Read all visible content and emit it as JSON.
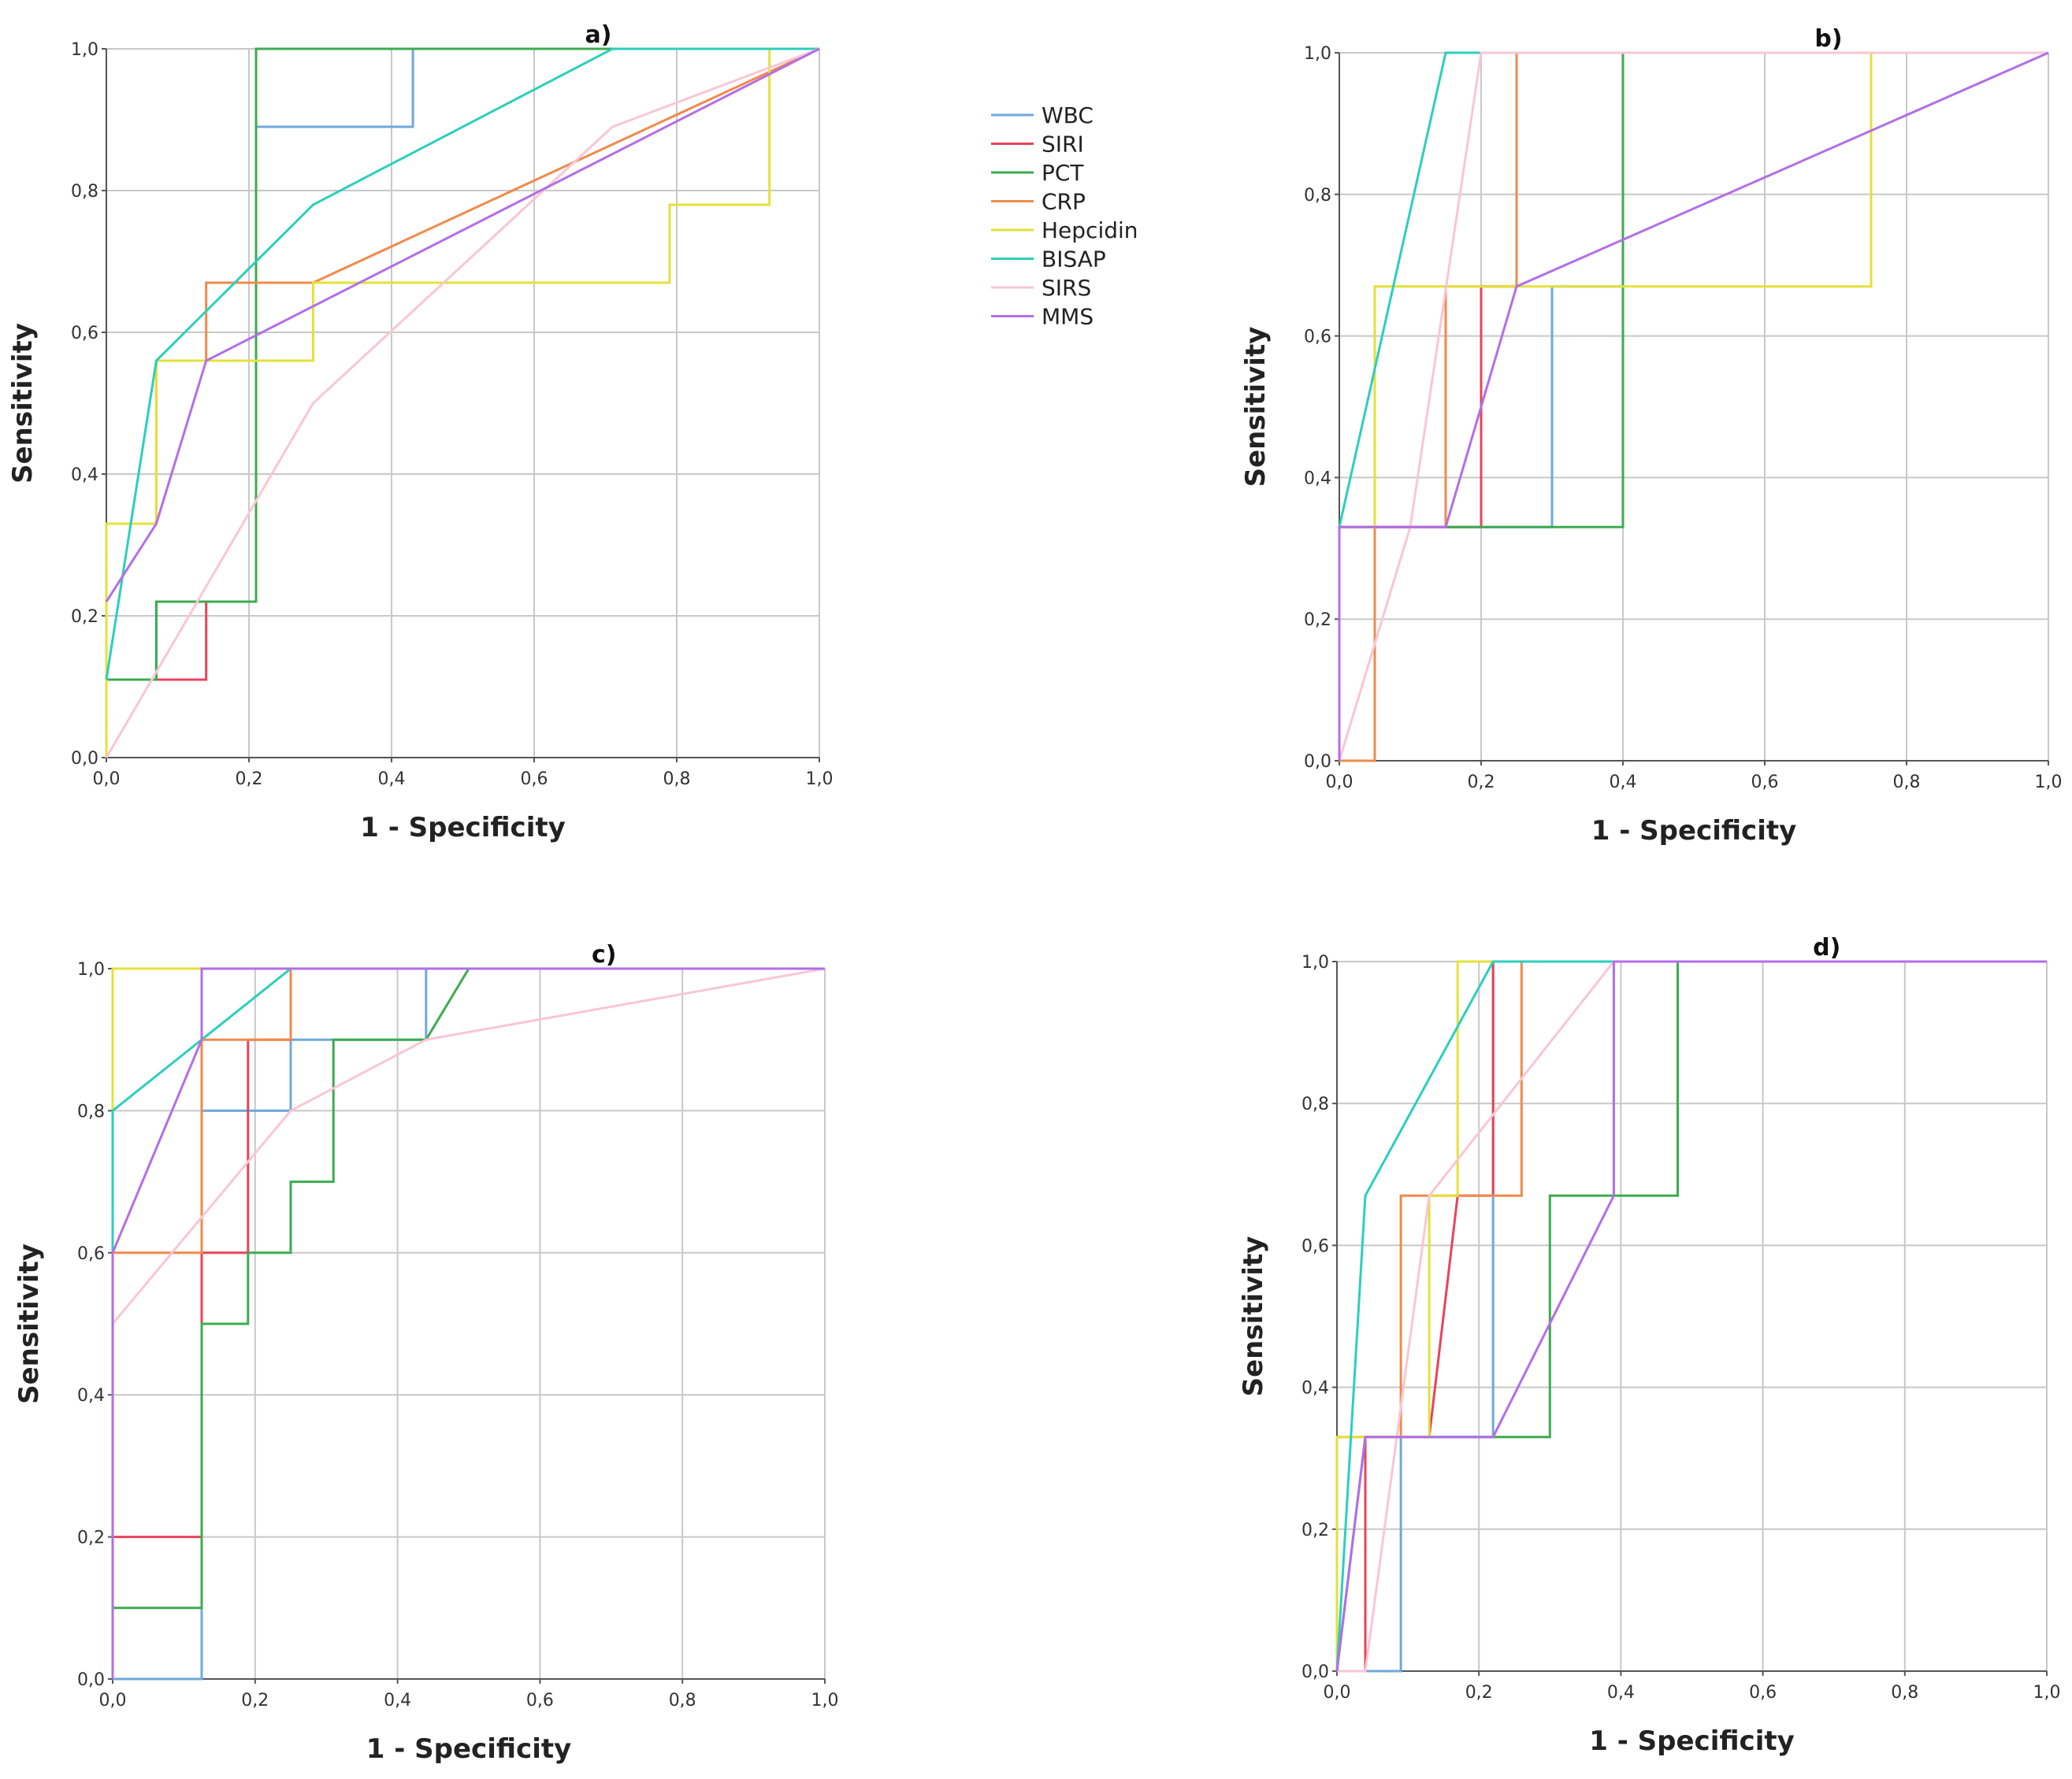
{
  "series_colors": {
    "WBC": "#6fa8dc",
    "SIRI": "#e8435a",
    "PCT": "#3cab50",
    "CRP": "#f08a4b",
    "Hepcidin": "#e3e13a",
    "BISAP": "#2ccfbc",
    "SIRS": "#f9c6d4",
    "MMS": "#b36ee8"
  },
  "legend": {
    "entries": [
      "WBC",
      "SIRI",
      "PCT",
      "CRP",
      "Hepcidin",
      "BISAP",
      "SIRS",
      "MMS"
    ]
  },
  "chart_data": [
    {
      "type": "line",
      "title": "a)",
      "xlabel": "1 - Specificity",
      "ylabel": "Sensitivity",
      "xlim": [
        0,
        1
      ],
      "ylim": [
        0,
        1
      ],
      "grid": true,
      "x_tick_labels": [
        "0,0",
        "0,2",
        "0,4",
        "0,6",
        "0,8",
        "1,0"
      ],
      "y_tick_labels": [
        "0,0",
        "0,2",
        "0,4",
        "0,6",
        "0,8",
        "1,0"
      ],
      "series": [
        {
          "name": "WBC",
          "x": [
            0,
            0,
            0.07,
            0.07,
            0.14,
            0.14,
            0.21,
            0.21,
            0.43,
            0.43,
            1
          ],
          "y": [
            0,
            0.11,
            0.11,
            0.22,
            0.22,
            0.22,
            0.22,
            0.89,
            0.89,
            1,
            1
          ]
        },
        {
          "name": "SIRI",
          "x": [
            0,
            0,
            0.07,
            0.14,
            0.14,
            0.21,
            0.21,
            1
          ],
          "y": [
            0,
            0.11,
            0.11,
            0.11,
            0.22,
            0.22,
            1,
            1
          ]
        },
        {
          "name": "PCT",
          "x": [
            0,
            0,
            0.07,
            0.07,
            0.21,
            0.21,
            1
          ],
          "y": [
            0,
            0.11,
            0.11,
            0.22,
            0.22,
            1,
            1
          ]
        },
        {
          "name": "CRP",
          "x": [
            0,
            0,
            0.07,
            0.07,
            0.14,
            0.14,
            0.29,
            1
          ],
          "y": [
            0,
            0.33,
            0.33,
            0.56,
            0.56,
            0.67,
            0.67,
            1
          ]
        },
        {
          "name": "Hepcidin",
          "x": [
            0,
            0,
            0.07,
            0.07,
            0.29,
            0.29,
            0.79,
            0.79,
            0.93,
            0.93,
            1
          ],
          "y": [
            0,
            0.33,
            0.33,
            0.56,
            0.56,
            0.67,
            0.67,
            0.78,
            0.78,
            1,
            1
          ]
        },
        {
          "name": "BISAP",
          "x": [
            0,
            0.07,
            0.29,
            0.71,
            1
          ],
          "y": [
            0.11,
            0.56,
            0.78,
            1,
            1
          ]
        },
        {
          "name": "SIRS",
          "x": [
            0,
            0.29,
            0.71,
            1
          ],
          "y": [
            0,
            0.5,
            0.89,
            1
          ]
        },
        {
          "name": "MMS",
          "x": [
            0,
            0.07,
            0.14,
            1
          ],
          "y": [
            0.22,
            0.33,
            0.56,
            1
          ]
        }
      ]
    },
    {
      "type": "line",
      "title": "b)",
      "xlabel": "1 - Specificity",
      "ylabel": "Sensitivity",
      "xlim": [
        0,
        1
      ],
      "ylim": [
        0,
        1
      ],
      "grid": true,
      "x_tick_labels": [
        "0,0",
        "0,2",
        "0,4",
        "0,6",
        "0,8",
        "1,0"
      ],
      "y_tick_labels": [
        "0,0",
        "0,2",
        "0,4",
        "0,6",
        "0,8",
        "1,0"
      ],
      "series": [
        {
          "name": "WBC",
          "x": [
            0,
            0,
            0.3,
            0.3,
            0.4,
            0.4,
            1
          ],
          "y": [
            0,
            0.33,
            0.33,
            0.67,
            0.67,
            1,
            1
          ]
        },
        {
          "name": "SIRI",
          "x": [
            0,
            0,
            0.2,
            0.2,
            0.25,
            0.25,
            1
          ],
          "y": [
            0,
            0.33,
            0.33,
            0.67,
            0.67,
            1,
            1
          ]
        },
        {
          "name": "PCT",
          "x": [
            0,
            0,
            0.4,
            0.4,
            1
          ],
          "y": [
            0,
            0.33,
            0.33,
            1,
            1
          ]
        },
        {
          "name": "CRP",
          "x": [
            0,
            0.05,
            0.05,
            0.15,
            0.15,
            0.25,
            0.25,
            1
          ],
          "y": [
            0,
            0,
            0.33,
            0.33,
            0.67,
            0.67,
            1,
            1
          ]
        },
        {
          "name": "Hepcidin",
          "x": [
            0,
            0,
            0.05,
            0.05,
            0.75,
            0.75,
            1
          ],
          "y": [
            0,
            0.33,
            0.33,
            0.67,
            0.67,
            1,
            1
          ]
        },
        {
          "name": "BISAP",
          "x": [
            0,
            0.15,
            0.2,
            1
          ],
          "y": [
            0.33,
            1,
            1,
            1
          ]
        },
        {
          "name": "SIRS",
          "x": [
            0,
            0.1,
            0.2,
            1
          ],
          "y": [
            0,
            0.33,
            1,
            1
          ]
        },
        {
          "name": "MMS",
          "x": [
            0,
            0,
            0.15,
            0.25,
            1
          ],
          "y": [
            0,
            0.33,
            0.33,
            0.67,
            1
          ]
        }
      ]
    },
    {
      "type": "line",
      "title": "c)",
      "xlabel": "1 - Specificity",
      "ylabel": "Sensitivity",
      "xlim": [
        0,
        1
      ],
      "ylim": [
        0,
        1
      ],
      "grid": true,
      "x_tick_labels": [
        "0,0",
        "0,2",
        "0,4",
        "0,6",
        "0,8",
        "1,0"
      ],
      "y_tick_labels": [
        "0,0",
        "0,2",
        "0,4",
        "0,6",
        "0,8",
        "1,0"
      ],
      "series": [
        {
          "name": "WBC",
          "x": [
            0,
            0.125,
            0.125,
            0.19,
            0.19,
            0.25,
            0.25,
            0.44,
            0.44,
            1
          ],
          "y": [
            0,
            0,
            0.8,
            0.8,
            0.8,
            0.8,
            0.9,
            0.9,
            1,
            1
          ]
        },
        {
          "name": "SIRI",
          "x": [
            0,
            0,
            0.125,
            0.125,
            0.19,
            0.19,
            0.25,
            0.25,
            1
          ],
          "y": [
            0,
            0.2,
            0.2,
            0.6,
            0.6,
            0.9,
            0.9,
            1,
            1
          ]
        },
        {
          "name": "PCT",
          "x": [
            0,
            0,
            0.125,
            0.125,
            0.19,
            0.19,
            0.25,
            0.25,
            0.31,
            0.31,
            0.44,
            0.5,
            1
          ],
          "y": [
            0,
            0.1,
            0.1,
            0.5,
            0.5,
            0.6,
            0.6,
            0.7,
            0.7,
            0.9,
            0.9,
            1,
            1
          ]
        },
        {
          "name": "CRP",
          "x": [
            0,
            0,
            0.125,
            0.125,
            0.25,
            0.25,
            1
          ],
          "y": [
            0,
            0.6,
            0.6,
            0.9,
            0.9,
            1,
            1
          ]
        },
        {
          "name": "Hepcidin",
          "x": [
            0,
            0,
            1
          ],
          "y": [
            0,
            1,
            1
          ]
        },
        {
          "name": "BISAP",
          "x": [
            0,
            0,
            0.125,
            0.25,
            1
          ],
          "y": [
            0,
            0.8,
            0.9,
            1,
            1
          ]
        },
        {
          "name": "SIRS",
          "x": [
            0,
            0.25,
            0.44,
            1
          ],
          "y": [
            0.5,
            0.8,
            0.9,
            1
          ]
        },
        {
          "name": "MMS",
          "x": [
            0,
            0,
            0.125,
            0.125,
            1
          ],
          "y": [
            0,
            0.6,
            0.9,
            1,
            1
          ]
        }
      ]
    },
    {
      "type": "line",
      "title": "d)",
      "xlabel": "1 - Specificity",
      "ylabel": "Sensitivity",
      "xlim": [
        0,
        1
      ],
      "ylim": [
        0,
        1
      ],
      "grid": true,
      "x_tick_labels": [
        "0,0",
        "0,2",
        "0,4",
        "0,6",
        "0,8",
        "1,0"
      ],
      "y_tick_labels": [
        "0,0",
        "0,2",
        "0,4",
        "0,6",
        "0,8",
        "1,0"
      ],
      "series": [
        {
          "name": "WBC",
          "x": [
            0,
            0.09,
            0.09,
            0.22,
            0.22,
            1
          ],
          "y": [
            0,
            0,
            0.33,
            0.33,
            1,
            1
          ]
        },
        {
          "name": "SIRI",
          "x": [
            0,
            0.04,
            0.04,
            0.13,
            0.17,
            0.22,
            0.22,
            1
          ],
          "y": [
            0,
            0,
            0.33,
            0.33,
            0.67,
            0.67,
            1,
            1
          ]
        },
        {
          "name": "PCT",
          "x": [
            0,
            0.04,
            0.3,
            0.3,
            0.48,
            0.48,
            1
          ],
          "y": [
            0,
            0.33,
            0.33,
            0.67,
            0.67,
            1,
            1
          ]
        },
        {
          "name": "CRP",
          "x": [
            0,
            0,
            0.09,
            0.09,
            0.26,
            0.26,
            1
          ],
          "y": [
            0,
            0.33,
            0.33,
            0.67,
            0.67,
            1,
            1
          ]
        },
        {
          "name": "Hepcidin",
          "x": [
            0,
            0,
            0.13,
            0.13,
            0.17,
            0.17,
            1
          ],
          "y": [
            0,
            0.33,
            0.33,
            0.67,
            0.67,
            1,
            1
          ]
        },
        {
          "name": "BISAP",
          "x": [
            0,
            0.04,
            0.22,
            1
          ],
          "y": [
            0,
            0.67,
            1,
            1
          ]
        },
        {
          "name": "SIRS",
          "x": [
            0,
            0.04,
            0.13,
            0.39,
            1
          ],
          "y": [
            0,
            0,
            0.67,
            1,
            1
          ]
        },
        {
          "name": "MMS",
          "x": [
            0,
            0.04,
            0.22,
            0.39,
            0.39,
            1
          ],
          "y": [
            0,
            0.33,
            0.33,
            0.67,
            1,
            1
          ]
        }
      ]
    }
  ]
}
